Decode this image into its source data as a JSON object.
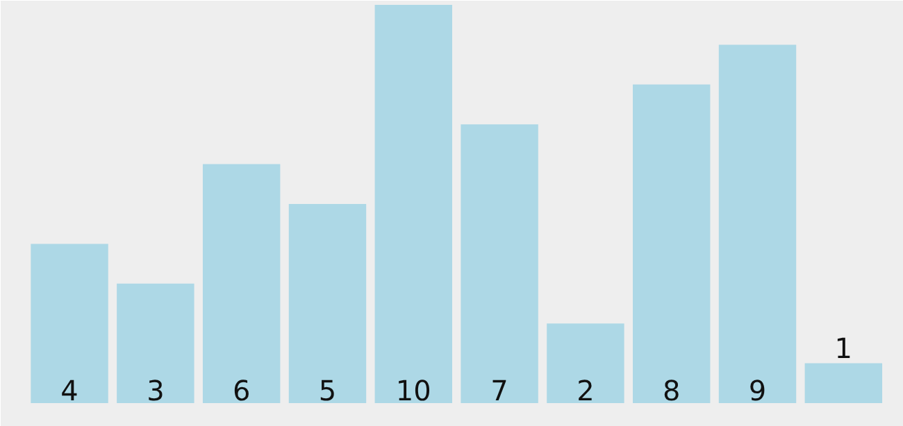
{
  "chart_data": {
    "type": "bar",
    "categories": [
      null,
      null,
      null,
      null,
      null,
      null,
      null,
      null,
      null,
      null
    ],
    "values": [
      4,
      3,
      6,
      5,
      10,
      7,
      2,
      8,
      9,
      1
    ],
    "color": "#add8e6",
    "data_labels": true
  }
}
